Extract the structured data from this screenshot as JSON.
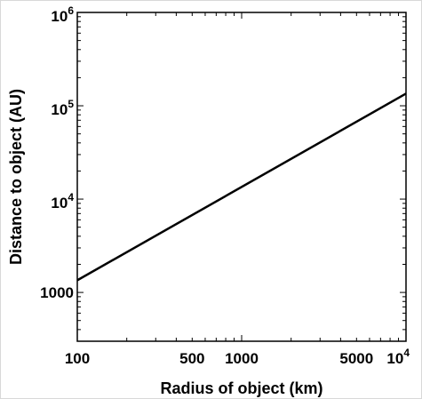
{
  "chart_data": {
    "type": "line",
    "xlabel": "Radius of object (km)",
    "ylabel": "Distance to object (AU)",
    "x_scale": "log",
    "y_scale": "log",
    "xlim": [
      100,
      10000
    ],
    "ylim": [
      300,
      1000000
    ],
    "grid": false,
    "x_ticks": [
      {
        "value": 100,
        "label": "100"
      },
      {
        "value": 500,
        "label": "500"
      },
      {
        "value": 1000,
        "label": "1000"
      },
      {
        "value": 5000,
        "label": "5000"
      },
      {
        "value": 10000,
        "label": "10",
        "exp": "4"
      }
    ],
    "y_ticks": [
      {
        "value": 1000,
        "label": "1000"
      },
      {
        "value": 10000,
        "label": "10",
        "exp": "4"
      },
      {
        "value": 100000,
        "label": "10",
        "exp": "5"
      },
      {
        "value": 1000000,
        "label": "10",
        "exp": "6"
      }
    ],
    "series": [
      {
        "x": [
          100,
          10000
        ],
        "y": [
          1350,
          135000
        ],
        "color": "#000000"
      }
    ]
  }
}
